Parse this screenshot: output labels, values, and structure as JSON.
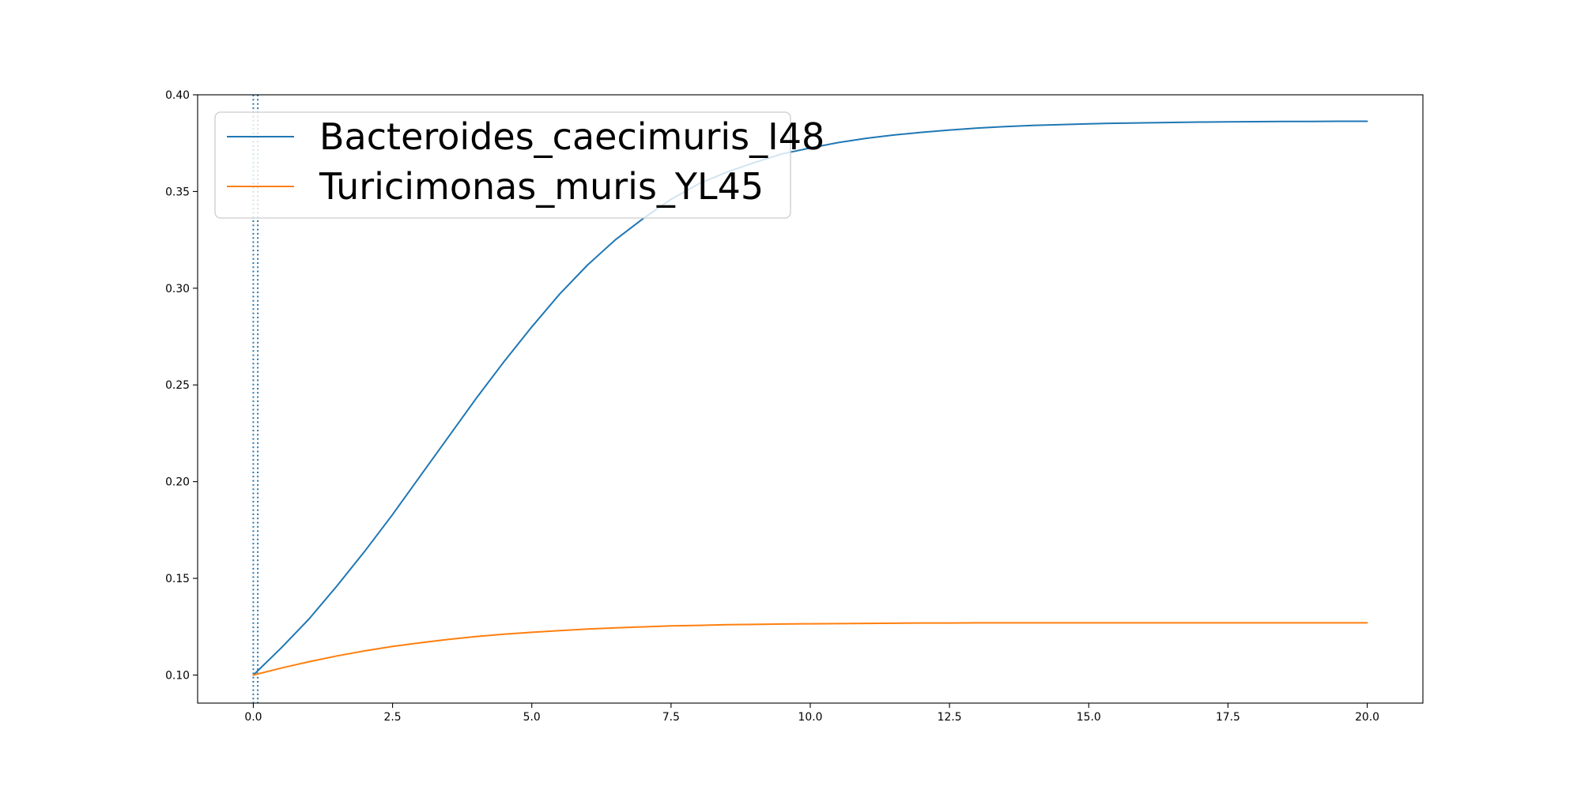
{
  "chart_data": {
    "type": "line",
    "title": "",
    "xlabel": "",
    "ylabel": "",
    "xlim": [
      -1.0,
      21.0
    ],
    "ylim": [
      0.0855,
      0.4
    ],
    "x_ticks": [
      0.0,
      2.5,
      5.0,
      7.5,
      10.0,
      12.5,
      15.0,
      17.5,
      20.0
    ],
    "x_tick_labels": [
      "0.0",
      "2.5",
      "5.0",
      "7.5",
      "10.0",
      "12.5",
      "15.0",
      "17.5",
      "20.0"
    ],
    "y_ticks": [
      0.1,
      0.15,
      0.2,
      0.25,
      0.3,
      0.35,
      0.4
    ],
    "y_tick_labels": [
      "0.10",
      "0.15",
      "0.20",
      "0.25",
      "0.30",
      "0.35",
      "0.40"
    ],
    "grid": false,
    "legend": {
      "placement": "upper left"
    },
    "series": [
      {
        "name": "Bacteroides_caecimuris_I48",
        "color": "#1f77b4",
        "x": [
          0,
          0.5,
          1,
          1.5,
          2,
          2.5,
          3,
          3.5,
          4,
          4.5,
          5,
          5.5,
          6,
          6.5,
          7,
          7.5,
          8,
          8.5,
          9,
          9.5,
          10,
          10.5,
          11,
          11.5,
          12,
          12.5,
          13,
          13.5,
          14,
          14.5,
          15,
          15.5,
          16,
          16.5,
          17,
          17.5,
          18,
          18.5,
          19,
          19.5,
          20
        ],
        "y": [
          0.1,
          0.114,
          0.129,
          0.146,
          0.164,
          0.183,
          0.203,
          0.223,
          0.243,
          0.262,
          0.28,
          0.297,
          0.312,
          0.325,
          0.336,
          0.346,
          0.354,
          0.36,
          0.365,
          0.3695,
          0.3725,
          0.3753,
          0.3775,
          0.3792,
          0.3806,
          0.3818,
          0.3828,
          0.3836,
          0.3842,
          0.3846,
          0.385,
          0.3853,
          0.3855,
          0.3857,
          0.3859,
          0.386,
          0.3861,
          0.3862,
          0.3862,
          0.3863,
          0.3863
        ]
      },
      {
        "name": "Turicimonas_muris_YL45",
        "color": "#ff7f0e",
        "x": [
          0,
          0.5,
          1,
          1.5,
          2,
          2.5,
          3,
          3.5,
          4,
          4.5,
          5,
          5.5,
          6,
          6.5,
          7,
          7.5,
          8,
          8.5,
          9,
          9.5,
          10,
          10.5,
          11,
          11.5,
          12,
          12.5,
          13,
          13.5,
          14,
          14.5,
          15,
          15.5,
          16,
          16.5,
          17,
          17.5,
          18,
          18.5,
          19,
          19.5,
          20
        ],
        "y": [
          0.1,
          0.1036,
          0.1069,
          0.1099,
          0.1125,
          0.1148,
          0.1167,
          0.1184,
          0.1199,
          0.1211,
          0.1221,
          0.123,
          0.1238,
          0.1244,
          0.1249,
          0.1254,
          0.1257,
          0.126,
          0.1262,
          0.1264,
          0.1265,
          0.1266,
          0.1267,
          0.1268,
          0.1269,
          0.1269,
          0.127,
          0.127,
          0.127,
          0.127,
          0.127,
          0.127,
          0.127,
          0.127,
          0.127,
          0.127,
          0.127,
          0.127,
          0.127,
          0.127,
          0.127
        ]
      }
    ],
    "vertical_lines": [
      {
        "x": 0.0,
        "color": "#1f77b4",
        "style": "dotted"
      },
      {
        "x": 0.08,
        "color": "#1f77b4",
        "style": "dotted"
      }
    ]
  }
}
